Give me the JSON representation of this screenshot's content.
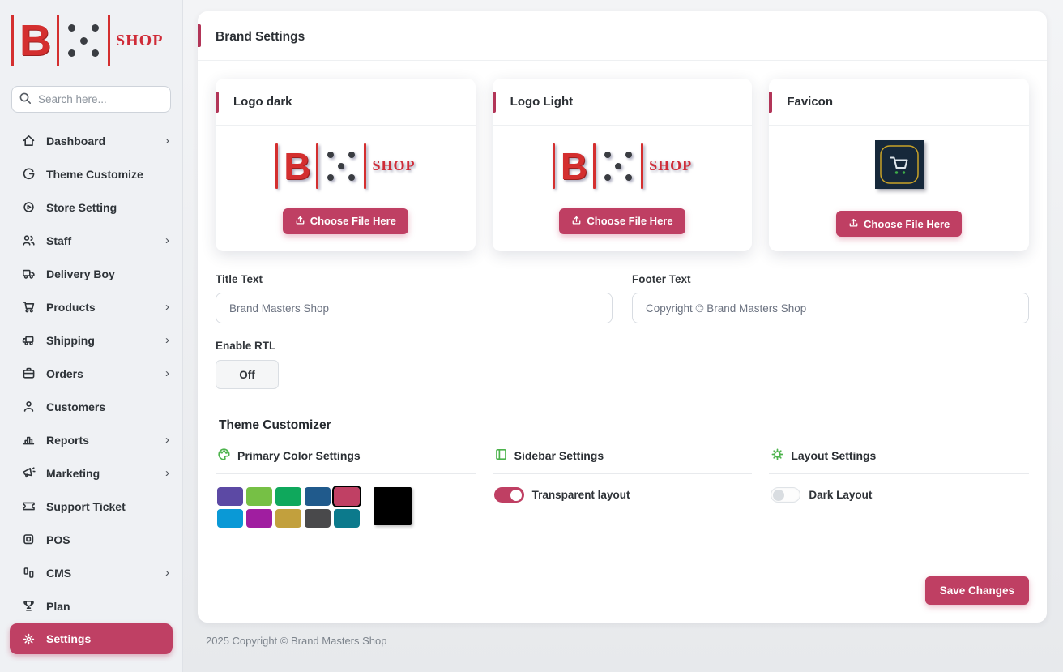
{
  "brand": {
    "letter": "B",
    "shop": "SHOP"
  },
  "sidebar": {
    "search_placeholder": "Search here...",
    "items": [
      {
        "label": "Dashboard",
        "icon": "home-icon",
        "chevron": "›",
        "active": false
      },
      {
        "label": "Theme Customize",
        "icon": "theme-icon",
        "chevron": "",
        "active": false
      },
      {
        "label": "Store Setting",
        "icon": "store-gear-icon",
        "chevron": "",
        "active": false
      },
      {
        "label": "Staff",
        "icon": "users-icon",
        "chevron": "›",
        "active": false
      },
      {
        "label": "Delivery Boy",
        "icon": "truck-icon",
        "chevron": "",
        "active": false
      },
      {
        "label": "Products",
        "icon": "cart-icon",
        "chevron": "›",
        "active": false
      },
      {
        "label": "Shipping",
        "icon": "shipping-truck-icon",
        "chevron": "›",
        "active": false
      },
      {
        "label": "Orders",
        "icon": "briefcase-icon",
        "chevron": "›",
        "active": false
      },
      {
        "label": "Customers",
        "icon": "user-icon",
        "chevron": "",
        "active": false
      },
      {
        "label": "Reports",
        "icon": "bar-chart-icon",
        "chevron": "›",
        "active": false
      },
      {
        "label": "Marketing",
        "icon": "megaphone-icon",
        "chevron": "›",
        "active": false
      },
      {
        "label": "Support Ticket",
        "icon": "ticket-icon",
        "chevron": "",
        "active": false
      },
      {
        "label": "POS",
        "icon": "pos-icon",
        "chevron": "",
        "active": false
      },
      {
        "label": "CMS",
        "icon": "cms-icon",
        "chevron": "›",
        "active": false
      },
      {
        "label": "Plan",
        "icon": "trophy-icon",
        "chevron": "",
        "active": false
      },
      {
        "label": "Settings",
        "icon": "gear-icon",
        "chevron": "",
        "active": true
      }
    ]
  },
  "header": {
    "title": "Brand Settings"
  },
  "cards": [
    {
      "title": "Logo dark",
      "button": "Choose File Here"
    },
    {
      "title": "Logo Light",
      "button": "Choose File Here"
    },
    {
      "title": "Favicon",
      "button": "Choose File Here"
    }
  ],
  "form": {
    "title_label": "Title Text",
    "title_value": "Brand Masters Shop",
    "footer_label": "Footer Text",
    "footer_value": "Copyright © Brand Masters Shop",
    "rtl_label": "Enable RTL",
    "rtl_value": "Off"
  },
  "theme": {
    "heading": "Theme Customizer",
    "primary_label": "Primary Color Settings",
    "sidebar_label": "Sidebar Settings",
    "layout_label": "Layout Settings",
    "transparent_toggle_label": "Transparent layout",
    "transparent_toggle_state": "on",
    "dark_toggle_label": "Dark Layout",
    "dark_toggle_state": "off",
    "accent_color": "#bf3f63",
    "selected_swatch": "#c04064",
    "custom_swatch": "#000000",
    "swatches_row1": [
      "#5c49a4",
      "#76c045",
      "#0fa85c",
      "#205a8c",
      "#c04064"
    ],
    "swatches_row2": [
      "#0a99d6",
      "#a01ea0",
      "#c2a03d",
      "#49494b",
      "#0c7a8c"
    ]
  },
  "footer_bar": {
    "save_button": "Save Changes"
  },
  "page_footer": {
    "text": "2025 Copyright © Brand Masters Shop"
  }
}
